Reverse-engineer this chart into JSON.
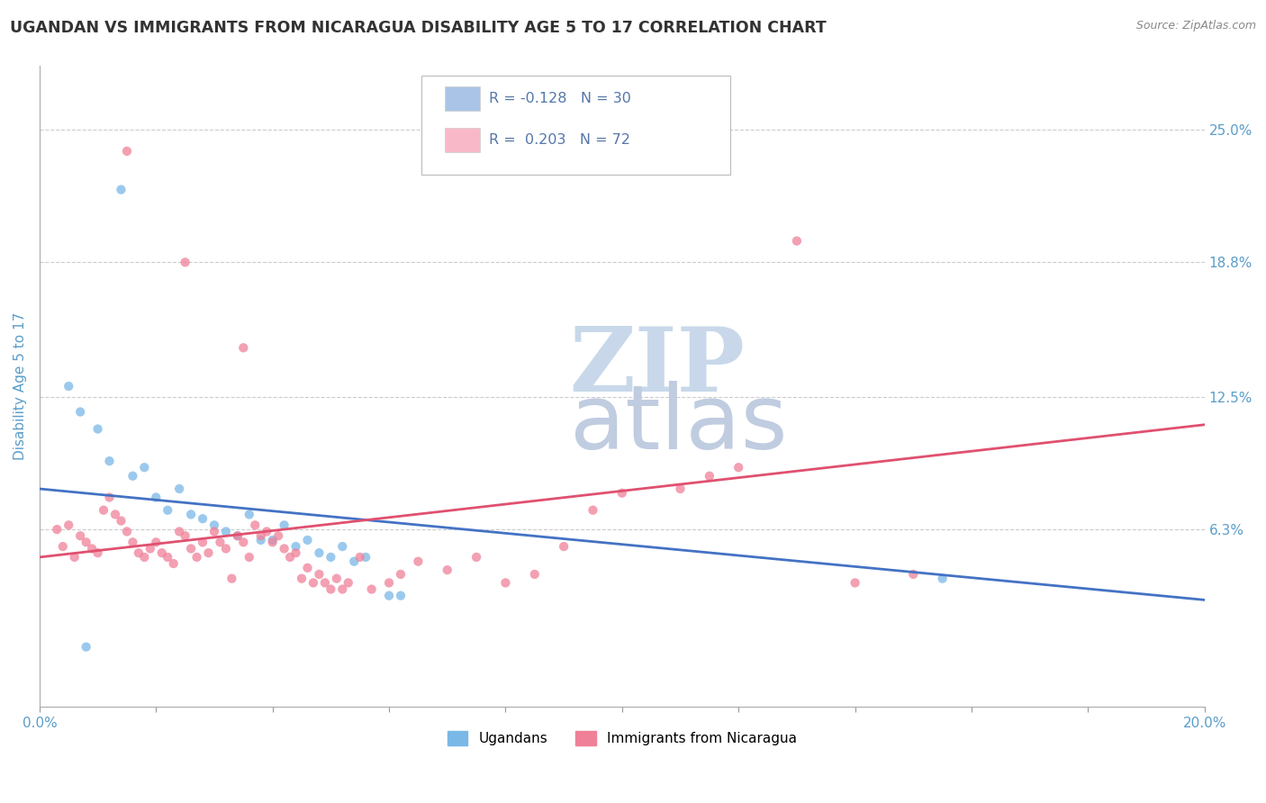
{
  "title": "UGANDAN VS IMMIGRANTS FROM NICARAGUA DISABILITY AGE 5 TO 17 CORRELATION CHART",
  "source": "Source: ZipAtlas.com",
  "ylabel": "Disability Age 5 to 17",
  "ylabel_right_labels": [
    "25.0%",
    "18.8%",
    "12.5%",
    "6.3%"
  ],
  "ylabel_right_values": [
    0.25,
    0.188,
    0.125,
    0.063
  ],
  "xmin": 0.0,
  "xmax": 0.2,
  "ymin": -0.02,
  "ymax": 0.28,
  "watermark_top": "ZIP",
  "watermark_bottom": "atlas",
  "legend_entries": [
    {
      "label": "R = -0.128   N = 30",
      "color": "#aac4e8",
      "text_color": "#5577aa"
    },
    {
      "label": "R =  0.203   N = 72",
      "color": "#f9b8c8",
      "text_color": "#5577aa"
    }
  ],
  "ugandan_points": [
    [
      0.005,
      0.13
    ],
    [
      0.007,
      0.118
    ],
    [
      0.01,
      0.11
    ],
    [
      0.012,
      0.095
    ],
    [
      0.014,
      0.222
    ],
    [
      0.016,
      0.088
    ],
    [
      0.018,
      0.092
    ],
    [
      0.02,
      0.078
    ],
    [
      0.022,
      0.072
    ],
    [
      0.024,
      0.082
    ],
    [
      0.026,
      0.07
    ],
    [
      0.028,
      0.068
    ],
    [
      0.03,
      0.065
    ],
    [
      0.032,
      0.062
    ],
    [
      0.034,
      0.06
    ],
    [
      0.036,
      0.07
    ],
    [
      0.038,
      0.058
    ],
    [
      0.04,
      0.058
    ],
    [
      0.042,
      0.065
    ],
    [
      0.044,
      0.055
    ],
    [
      0.046,
      0.058
    ],
    [
      0.048,
      0.052
    ],
    [
      0.05,
      0.05
    ],
    [
      0.052,
      0.055
    ],
    [
      0.054,
      0.048
    ],
    [
      0.056,
      0.05
    ],
    [
      0.06,
      0.032
    ],
    [
      0.062,
      0.032
    ],
    [
      0.155,
      0.04
    ],
    [
      0.008,
      0.008
    ]
  ],
  "nicaragua_points": [
    [
      0.003,
      0.063
    ],
    [
      0.004,
      0.055
    ],
    [
      0.005,
      0.065
    ],
    [
      0.006,
      0.05
    ],
    [
      0.007,
      0.06
    ],
    [
      0.008,
      0.057
    ],
    [
      0.009,
      0.054
    ],
    [
      0.01,
      0.052
    ],
    [
      0.011,
      0.072
    ],
    [
      0.012,
      0.078
    ],
    [
      0.013,
      0.07
    ],
    [
      0.014,
      0.067
    ],
    [
      0.015,
      0.062
    ],
    [
      0.015,
      0.24
    ],
    [
      0.016,
      0.057
    ],
    [
      0.017,
      0.052
    ],
    [
      0.018,
      0.05
    ],
    [
      0.019,
      0.054
    ],
    [
      0.02,
      0.057
    ],
    [
      0.021,
      0.052
    ],
    [
      0.022,
      0.05
    ],
    [
      0.023,
      0.047
    ],
    [
      0.024,
      0.062
    ],
    [
      0.025,
      0.06
    ],
    [
      0.025,
      0.188
    ],
    [
      0.026,
      0.054
    ],
    [
      0.027,
      0.05
    ],
    [
      0.028,
      0.057
    ],
    [
      0.029,
      0.052
    ],
    [
      0.03,
      0.062
    ],
    [
      0.031,
      0.057
    ],
    [
      0.032,
      0.054
    ],
    [
      0.033,
      0.04
    ],
    [
      0.034,
      0.06
    ],
    [
      0.035,
      0.057
    ],
    [
      0.035,
      0.148
    ],
    [
      0.036,
      0.05
    ],
    [
      0.037,
      0.065
    ],
    [
      0.038,
      0.06
    ],
    [
      0.039,
      0.062
    ],
    [
      0.04,
      0.057
    ],
    [
      0.041,
      0.06
    ],
    [
      0.042,
      0.054
    ],
    [
      0.043,
      0.05
    ],
    [
      0.044,
      0.052
    ],
    [
      0.045,
      0.04
    ],
    [
      0.046,
      0.045
    ],
    [
      0.047,
      0.038
    ],
    [
      0.048,
      0.042
    ],
    [
      0.049,
      0.038
    ],
    [
      0.05,
      0.035
    ],
    [
      0.051,
      0.04
    ],
    [
      0.052,
      0.035
    ],
    [
      0.053,
      0.038
    ],
    [
      0.055,
      0.05
    ],
    [
      0.057,
      0.035
    ],
    [
      0.06,
      0.038
    ],
    [
      0.062,
      0.042
    ],
    [
      0.065,
      0.048
    ],
    [
      0.07,
      0.044
    ],
    [
      0.075,
      0.05
    ],
    [
      0.08,
      0.038
    ],
    [
      0.085,
      0.042
    ],
    [
      0.09,
      0.055
    ],
    [
      0.095,
      0.072
    ],
    [
      0.1,
      0.08
    ],
    [
      0.11,
      0.082
    ],
    [
      0.115,
      0.088
    ],
    [
      0.12,
      0.092
    ],
    [
      0.13,
      0.198
    ],
    [
      0.14,
      0.038
    ],
    [
      0.15,
      0.042
    ]
  ],
  "blue_line_x": [
    0.0,
    0.2
  ],
  "blue_line_y": [
    0.082,
    0.03
  ],
  "pink_line_x": [
    0.0,
    0.2
  ],
  "pink_line_y": [
    0.05,
    0.112
  ],
  "scatter_color_ugandan": "#7ab8e8",
  "scatter_color_nicaragua": "#f08098",
  "line_color_ugandan": "#4472c4",
  "line_color_nicaragua": "#e05070",
  "background_color": "#ffffff",
  "grid_color": "#cccccc",
  "title_color": "#333333",
  "axis_tick_color": "#5b9dc9",
  "right_label_color": "#5b9dc9",
  "watermark_color_zip": "#c8d8ea",
  "watermark_color_atlas": "#c0cce0"
}
